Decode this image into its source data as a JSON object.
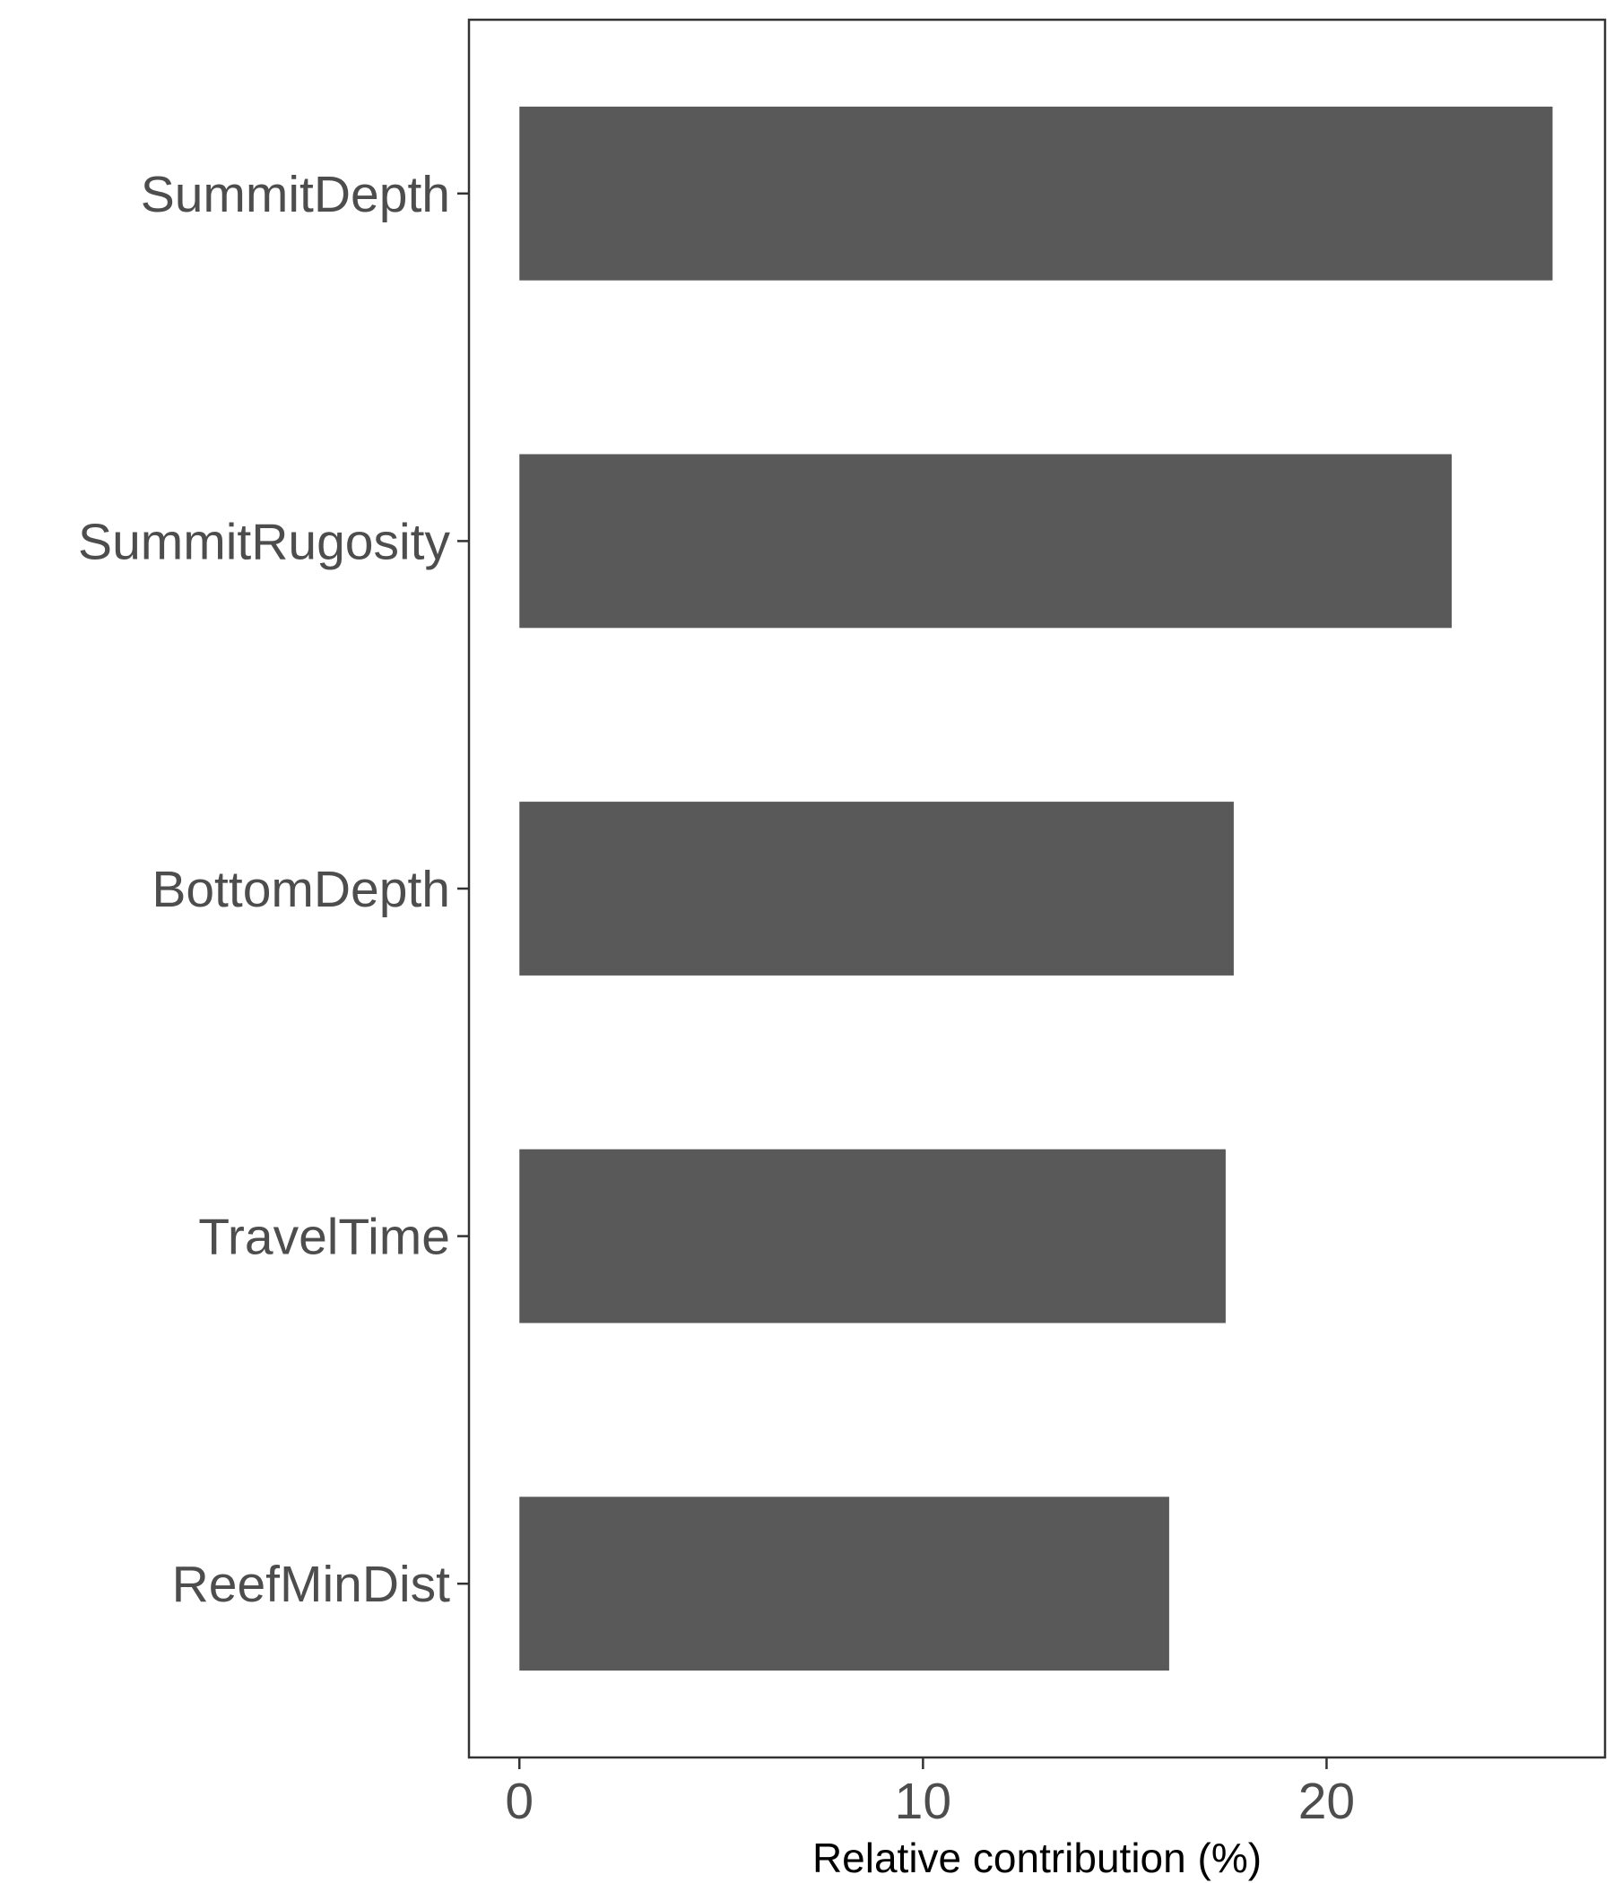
{
  "chart_data": {
    "type": "bar",
    "orientation": "horizontal",
    "categories": [
      "SummitDepth",
      "SummitRugosity",
      "BottomDepth",
      "TravelTime",
      "ReefMinDist"
    ],
    "values": [
      25.6,
      23.1,
      17.7,
      17.5,
      16.1
    ],
    "xlabel": "Relative contribution (%)",
    "ylabel": "",
    "xlim": [
      -1.25,
      26.9
    ],
    "xticks": [
      0,
      10,
      20
    ],
    "xtick_labels": [
      "0",
      "10",
      "20"
    ],
    "grid": false,
    "legend": "none",
    "colors": {
      "bar": "#595959",
      "frame": "#333333",
      "tick_text": "#4d4d4d",
      "axis_title": "#000000"
    }
  }
}
